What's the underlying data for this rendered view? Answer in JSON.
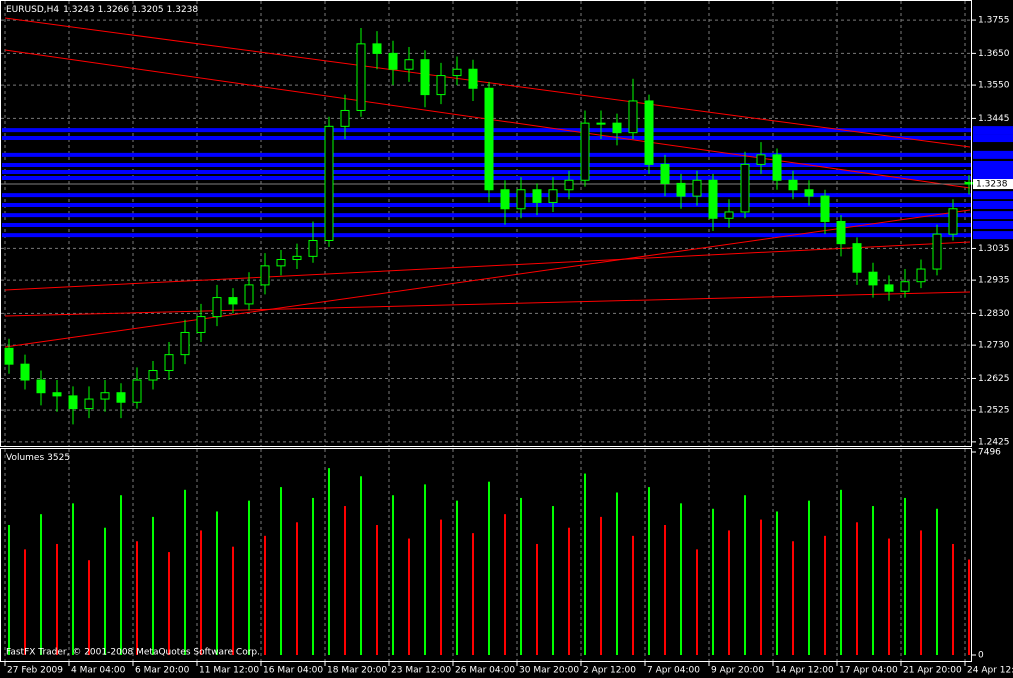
{
  "chart_data": [
    {
      "type": "candlestick",
      "title": "EURUSD,H4",
      "quote": [
        1.3243,
        1.3266,
        1.3205,
        1.3238
      ],
      "categories": [
        "27 Feb 2009",
        null,
        null,
        null,
        "4 Mar 04:00",
        null,
        null,
        null,
        "6 Mar 20:00",
        null,
        null,
        null,
        "11 Mar 12:00",
        null,
        null,
        null,
        "16 Mar 04:00",
        null,
        null,
        null,
        "18 Mar 20:00",
        null,
        null,
        null,
        "23 Mar 12:00",
        null,
        null,
        null,
        "26 Mar 04:00",
        null,
        null,
        null,
        "30 Mar 20:00",
        null,
        null,
        null,
        "2 Apr 12:00",
        null,
        null,
        null,
        "7 Apr 04:00",
        null,
        null,
        null,
        "9 Apr 20:00",
        null,
        null,
        null,
        "14 Apr 12:00",
        null,
        null,
        null,
        "17 Apr 04:00",
        null,
        null,
        null,
        "21 Apr 20:00",
        null,
        null,
        null,
        "24 Apr 12:00"
      ],
      "open": [
        1.272,
        1.267,
        1.262,
        1.258,
        1.257,
        1.253,
        1.256,
        1.258,
        1.255,
        1.262,
        1.265,
        1.27,
        1.277,
        1.282,
        1.288,
        1.286,
        1.292,
        1.298,
        1.3,
        1.301,
        1.306,
        1.342,
        1.347,
        1.368,
        1.365,
        1.36,
        1.363,
        1.352,
        1.358,
        1.36,
        1.354,
        1.322,
        1.316,
        1.322,
        1.318,
        1.322,
        1.325,
        1.343,
        1.343,
        1.34,
        1.35,
        1.33,
        1.324,
        1.32,
        1.325,
        1.313,
        1.315,
        1.33,
        1.333,
        1.325,
        1.322,
        1.32,
        1.312,
        1.305,
        1.296,
        1.292,
        1.29,
        1.293,
        1.297,
        1.308,
        1.3243
      ],
      "high": [
        1.275,
        1.27,
        1.265,
        1.262,
        1.26,
        1.26,
        1.262,
        1.261,
        1.266,
        1.268,
        1.274,
        1.281,
        1.286,
        1.292,
        1.291,
        1.296,
        1.302,
        1.303,
        1.305,
        1.312,
        1.345,
        1.352,
        1.373,
        1.372,
        1.369,
        1.367,
        1.366,
        1.362,
        1.364,
        1.363,
        1.356,
        1.325,
        1.326,
        1.324,
        1.326,
        1.328,
        1.347,
        1.347,
        1.346,
        1.357,
        1.352,
        1.333,
        1.327,
        1.328,
        1.327,
        1.319,
        1.334,
        1.337,
        1.335,
        1.328,
        1.325,
        1.322,
        1.314,
        1.307,
        1.299,
        1.295,
        1.297,
        1.3,
        1.311,
        1.319,
        1.3266
      ],
      "low": [
        1.264,
        1.259,
        1.254,
        1.252,
        1.248,
        1.25,
        1.252,
        1.25,
        1.253,
        1.259,
        1.262,
        1.267,
        1.274,
        1.279,
        1.283,
        1.284,
        1.289,
        1.295,
        1.297,
        1.299,
        1.304,
        1.338,
        1.345,
        1.36,
        1.355,
        1.356,
        1.348,
        1.349,
        1.355,
        1.35,
        1.318,
        1.311,
        1.313,
        1.314,
        1.315,
        1.319,
        1.323,
        1.338,
        1.336,
        1.338,
        1.327,
        1.32,
        1.316,
        1.317,
        1.309,
        1.31,
        1.313,
        1.327,
        1.322,
        1.319,
        1.317,
        1.308,
        1.301,
        1.292,
        1.288,
        1.287,
        1.288,
        1.291,
        1.295,
        1.306,
        1.3205
      ],
      "close": [
        1.267,
        1.262,
        1.258,
        1.257,
        1.253,
        1.256,
        1.258,
        1.255,
        1.262,
        1.265,
        1.27,
        1.277,
        1.282,
        1.288,
        1.286,
        1.292,
        1.298,
        1.3,
        1.301,
        1.306,
        1.342,
        1.347,
        1.368,
        1.365,
        1.36,
        1.363,
        1.352,
        1.358,
        1.36,
        1.354,
        1.322,
        1.316,
        1.322,
        1.318,
        1.322,
        1.325,
        1.343,
        1.343,
        1.34,
        1.35,
        1.33,
        1.324,
        1.32,
        1.325,
        1.313,
        1.315,
        1.33,
        1.333,
        1.325,
        1.322,
        1.32,
        1.312,
        1.305,
        1.296,
        1.292,
        1.29,
        1.293,
        1.297,
        1.308,
        1.316,
        1.3238
      ],
      "color": "#00ff00",
      "current_price": 1.3238,
      "levels": [
        1.3408,
        1.3383,
        1.333,
        1.3298,
        1.3276,
        1.3257,
        1.3203,
        1.3172,
        1.314,
        1.3109,
        1.3077
      ],
      "levels_color": "#0000ff",
      "ylim": [
        1.2412,
        1.3812
      ],
      "yticks": [
        1.3755,
        {
          "value": 1.365,
          "label": "1.3650"
        },
        {
          "value": 1.355,
          "label": "1.3550"
        },
        1.3445,
        1.3035,
        1.2935,
        {
          "value": 1.283,
          "label": "1.2830"
        },
        {
          "value": 1.273,
          "label": "1.2730"
        },
        1.2625,
        1.2525,
        1.2425
      ],
      "grid": true
    },
    {
      "type": "bar",
      "title": "Volumes",
      "last_value": 3525,
      "values": [
        4800,
        3900,
        5200,
        4100,
        5600,
        3500,
        4700,
        5900,
        4200,
        5100,
        3800,
        6100,
        4600,
        5300,
        4000,
        5700,
        4400,
        6200,
        4900,
        5800,
        6900,
        5500,
        6600,
        4800,
        5900,
        4300,
        6300,
        5000,
        5700,
        4500,
        6400,
        5200,
        5800,
        4100,
        5500,
        4700,
        6700,
        5100,
        6000,
        4400,
        6200,
        4800,
        5600,
        3900,
        5400,
        4600,
        5900,
        5000,
        5300,
        4200,
        5700,
        4400,
        6100,
        4900,
        5500,
        4300,
        5800,
        4600,
        5400,
        4100,
        3525
      ],
      "up_color": "#00ff00",
      "down_color": "#ff0000",
      "ylim": [
        0,
        7496
      ],
      "yticks": [
        0,
        7496
      ],
      "annotation": "FastFX Trader, © 2001-2008 MetaQuotes Software Corp."
    }
  ]
}
